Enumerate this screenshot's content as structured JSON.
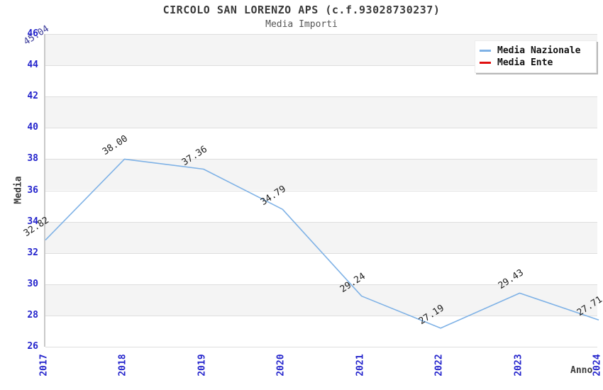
{
  "header": {
    "title": "CIRCOLO SAN LORENZO APS (c.f.93028730237)",
    "subtitle": "Media Importi"
  },
  "legend": {
    "items": [
      {
        "label": "Media Nazionale",
        "color": "#7fb2e6"
      },
      {
        "label": "Media Ente",
        "color": "#e01010"
      }
    ]
  },
  "colors": {
    "tick_label": "#2424cc",
    "band_gray": "#f4f4f4",
    "gridline": "#dedede",
    "axis": "#c9c9c9",
    "title_text": "#3a3a3a",
    "value_label": "#222222"
  },
  "chart_data": {
    "type": "line",
    "title": "CIRCOLO SAN LORENZO APS (c.f.93028730237)",
    "subtitle": "Media Importi",
    "xlabel": "Anno",
    "ylabel": "Media",
    "x": [
      2017,
      2018,
      2019,
      2020,
      2021,
      2022,
      2023,
      2024
    ],
    "ylim": [
      26,
      46
    ],
    "ytick_step": 2,
    "grid": "horizontal-bands",
    "legend_position": "top-right",
    "series": [
      {
        "name": "Media Nazionale",
        "color": "#7fb2e6",
        "label_color": "#222222",
        "values": [
          32.82,
          38.0,
          37.36,
          34.79,
          29.24,
          27.19,
          29.43,
          27.71
        ]
      },
      {
        "name": "Media Ente",
        "color": "#e01010",
        "label_color": "#3a3a99",
        "values": [
          45.04,
          null,
          null,
          null,
          null,
          null,
          null,
          null
        ]
      }
    ]
  }
}
